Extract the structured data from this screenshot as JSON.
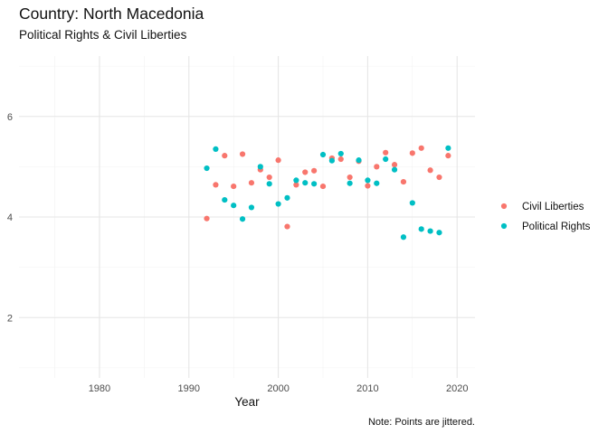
{
  "chart_data": {
    "type": "scatter",
    "title": "Country: North Macedonia",
    "subtitle": "Political Rights & Civil Liberties",
    "xlabel": "Year",
    "ylabel": "",
    "caption": "Note: Points are jittered.",
    "xlim": [
      1971,
      2022
    ],
    "ylim": [
      0.8,
      7.2
    ],
    "x_ticks": [
      1980,
      1990,
      2000,
      2010,
      2020
    ],
    "x_tick_labels": [
      "1980",
      "1990",
      "2000",
      "2010",
      "2020"
    ],
    "y_ticks": [
      2,
      4,
      6
    ],
    "y_tick_labels": [
      "2",
      "4",
      "6"
    ],
    "grid": true,
    "legend_position": "right",
    "series": [
      {
        "name": "Civil Liberties",
        "color": "#F8766D",
        "points": [
          {
            "x": 1992,
            "y": 3.97
          },
          {
            "x": 1993,
            "y": 4.64
          },
          {
            "x": 1994,
            "y": 5.22
          },
          {
            "x": 1995,
            "y": 4.61
          },
          {
            "x": 1996,
            "y": 5.25
          },
          {
            "x": 1997,
            "y": 4.68
          },
          {
            "x": 1998,
            "y": 4.94
          },
          {
            "x": 1999,
            "y": 4.79
          },
          {
            "x": 2000,
            "y": 5.13
          },
          {
            "x": 2001,
            "y": 3.81
          },
          {
            "x": 2002,
            "y": 4.64
          },
          {
            "x": 2003,
            "y": 4.89
          },
          {
            "x": 2004,
            "y": 4.92
          },
          {
            "x": 2005,
            "y": 4.61
          },
          {
            "x": 2006,
            "y": 5.17
          },
          {
            "x": 2007,
            "y": 5.15
          },
          {
            "x": 2008,
            "y": 4.79
          },
          {
            "x": 2009,
            "y": 5.11
          },
          {
            "x": 2010,
            "y": 4.62
          },
          {
            "x": 2011,
            "y": 5.0
          },
          {
            "x": 2012,
            "y": 5.28
          },
          {
            "x": 2013,
            "y": 5.04
          },
          {
            "x": 2014,
            "y": 4.7
          },
          {
            "x": 2015,
            "y": 5.27
          },
          {
            "x": 2016,
            "y": 5.37
          },
          {
            "x": 2017,
            "y": 4.93
          },
          {
            "x": 2018,
            "y": 4.79
          },
          {
            "x": 2019,
            "y": 5.22
          }
        ]
      },
      {
        "name": "Political Rights",
        "color": "#00BFC4",
        "points": [
          {
            "x": 1992,
            "y": 4.97
          },
          {
            "x": 1993,
            "y": 5.35
          },
          {
            "x": 1994,
            "y": 4.34
          },
          {
            "x": 1995,
            "y": 4.23
          },
          {
            "x": 1996,
            "y": 3.96
          },
          {
            "x": 1997,
            "y": 4.19
          },
          {
            "x": 1998,
            "y": 5.0
          },
          {
            "x": 1999,
            "y": 4.66
          },
          {
            "x": 2000,
            "y": 4.26
          },
          {
            "x": 2001,
            "y": 4.38
          },
          {
            "x": 2002,
            "y": 4.73
          },
          {
            "x": 2003,
            "y": 4.68
          },
          {
            "x": 2004,
            "y": 4.66
          },
          {
            "x": 2005,
            "y": 5.24
          },
          {
            "x": 2006,
            "y": 5.12
          },
          {
            "x": 2007,
            "y": 5.26
          },
          {
            "x": 2008,
            "y": 4.67
          },
          {
            "x": 2009,
            "y": 5.13
          },
          {
            "x": 2010,
            "y": 4.73
          },
          {
            "x": 2011,
            "y": 4.67
          },
          {
            "x": 2012,
            "y": 5.15
          },
          {
            "x": 2013,
            "y": 4.94
          },
          {
            "x": 2014,
            "y": 3.6
          },
          {
            "x": 2015,
            "y": 4.28
          },
          {
            "x": 2016,
            "y": 3.76
          },
          {
            "x": 2017,
            "y": 3.72
          },
          {
            "x": 2018,
            "y": 3.69
          },
          {
            "x": 2019,
            "y": 5.37
          }
        ]
      }
    ]
  }
}
